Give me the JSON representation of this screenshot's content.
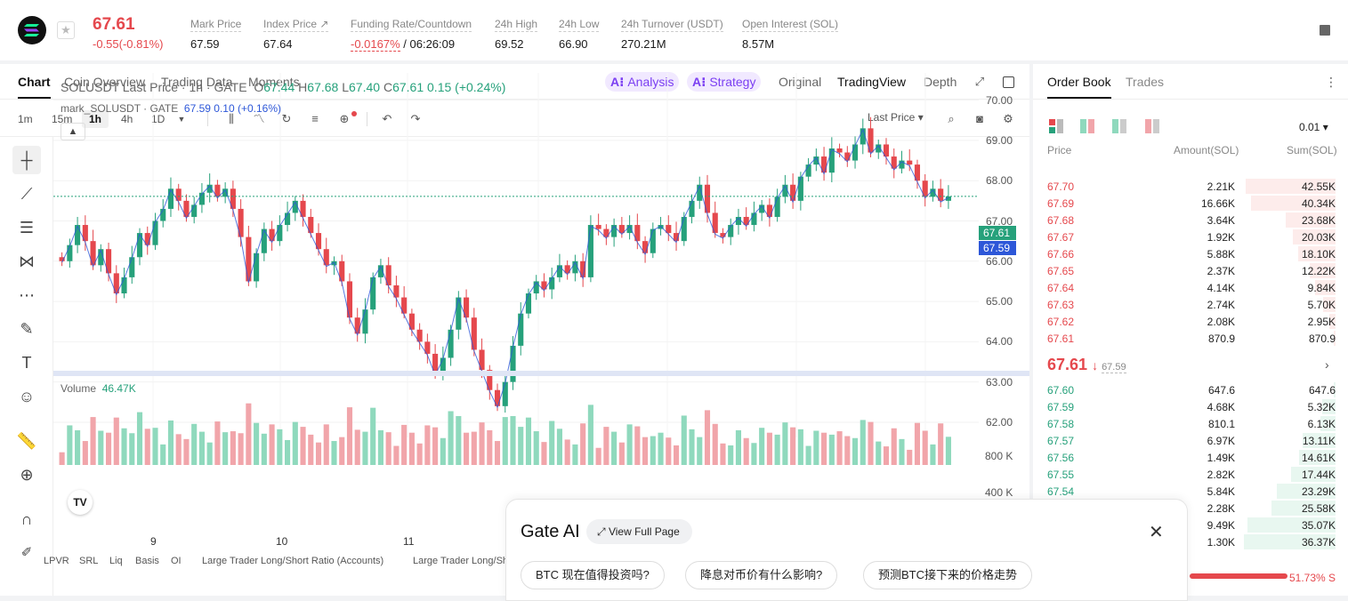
{
  "header": {
    "price": "67.61",
    "change": "-0.55(-0.81%)",
    "stats": [
      {
        "label": "Mark Price",
        "value": "67.59"
      },
      {
        "label": "Index Price ↗",
        "value": "67.64"
      },
      {
        "label": "Funding Rate/Countdown",
        "value": "-0.0167%",
        "value2": "/ 06:26:09"
      },
      {
        "label": "24h High",
        "value": "69.52"
      },
      {
        "label": "24h Low",
        "value": "66.90"
      },
      {
        "label": "24h Turnover (USDT)",
        "value": "270.21M"
      },
      {
        "label": "Open Interest (SOL)",
        "value": "8.57M"
      }
    ]
  },
  "chart_tabs": [
    "Chart",
    "Coin Overview",
    "Trading Data",
    "Moments"
  ],
  "ai_tabs": [
    "Analysis",
    "Strategy"
  ],
  "view_tabs": [
    "Original",
    "TradingView",
    "Depth"
  ],
  "intervals": [
    "1m",
    "15m",
    "1h",
    "4h",
    "1D"
  ],
  "price_type": "Last Price",
  "legend": {
    "symbol": "SOLUSDT Last Price · 1h · GATE",
    "o": "67.44",
    "h": "67.68",
    "l": "67.40",
    "c": "67.61",
    "chg": "0.15 (+0.24%)",
    "mark_label": "mark_SOLUSDT · GATE",
    "mark_val": "67.59",
    "mark_chg": "0.10 (+0.16%)"
  },
  "volume": {
    "label": "Volume",
    "value": "46.47K",
    "ticks": [
      "800 K",
      "400 K"
    ]
  },
  "chart_data": {
    "type": "candlestick",
    "ylim": [
      61.8,
      70.5
    ],
    "yticks": [
      "70.00",
      "69.00",
      "68.00",
      "67.00",
      "66.00",
      "65.00",
      "64.00",
      "63.00",
      "62.00"
    ],
    "xticks": [
      "9",
      "10",
      "11"
    ],
    "last_price": "67.61",
    "mark_price": "67.59",
    "closes": [
      66.0,
      66.4,
      66.9,
      66.5,
      65.9,
      66.3,
      65.7,
      65.2,
      65.6,
      66.1,
      66.7,
      66.4,
      67.0,
      67.3,
      67.8,
      67.5,
      67.1,
      67.4,
      67.7,
      67.9,
      67.6,
      67.8,
      67.3,
      66.6,
      65.5,
      66.2,
      66.8,
      66.5,
      66.9,
      67.2,
      67.5,
      67.1,
      66.7,
      66.3,
      65.9,
      66.0,
      65.5,
      64.6,
      64.2,
      64.8,
      65.6,
      65.9,
      65.4,
      65.1,
      64.7,
      64.3,
      64.0,
      63.7,
      63.2,
      63.6,
      64.3,
      65.1,
      64.6,
      63.8,
      63.3,
      62.8,
      62.4,
      63.0,
      63.9,
      64.7,
      65.2,
      65.5,
      65.3,
      65.6,
      65.9,
      65.7,
      66.0,
      65.6,
      66.9,
      66.8,
      66.6,
      66.9,
      66.7,
      66.9,
      66.5,
      66.2,
      66.8,
      66.9,
      66.7,
      66.5,
      67.1,
      67.5,
      67.9,
      67.2,
      66.7,
      66.6,
      66.9,
      67.1,
      66.9,
      67.2,
      67.4,
      67.1,
      67.6,
      67.9,
      67.5,
      68.1,
      68.4,
      68.6,
      68.2,
      68.8,
      68.7,
      68.5,
      68.9,
      69.3,
      68.7,
      68.9,
      68.6,
      68.3,
      68.5,
      68.4,
      68.0,
      67.6,
      67.8,
      67.5,
      67.61
    ]
  },
  "orderbook": {
    "tabs": [
      "Order Book",
      "Trades"
    ],
    "precision": "0.01",
    "headers": [
      "Price",
      "Amount(SOL)",
      "Sum(SOL)"
    ],
    "asks": [
      {
        "p": "67.70",
        "a": "2.21K",
        "s": "42.55K",
        "f": 0.95
      },
      {
        "p": "67.69",
        "a": "16.66K",
        "s": "40.34K",
        "f": 0.9
      },
      {
        "p": "67.68",
        "a": "3.64K",
        "s": "23.68K",
        "f": 0.53
      },
      {
        "p": "67.67",
        "a": "1.92K",
        "s": "20.03K",
        "f": 0.45
      },
      {
        "p": "67.66",
        "a": "5.88K",
        "s": "18.10K",
        "f": 0.4
      },
      {
        "p": "67.65",
        "a": "2.37K",
        "s": "12.22K",
        "f": 0.27
      },
      {
        "p": "67.64",
        "a": "4.14K",
        "s": "9.84K",
        "f": 0.22
      },
      {
        "p": "67.63",
        "a": "2.74K",
        "s": "5.70K",
        "f": 0.13
      },
      {
        "p": "67.62",
        "a": "2.08K",
        "s": "2.95K",
        "f": 0.07
      },
      {
        "p": "67.61",
        "a": "870.9",
        "s": "870.9",
        "f": 0.02
      }
    ],
    "mid_price": "67.61",
    "mid_mark": "67.59",
    "bids": [
      {
        "p": "67.60",
        "a": "647.6",
        "s": "647.6",
        "f": 0.02
      },
      {
        "p": "67.59",
        "a": "4.68K",
        "s": "5.32K",
        "f": 0.14
      },
      {
        "p": "67.58",
        "a": "810.1",
        "s": "6.13K",
        "f": 0.16
      },
      {
        "p": "67.57",
        "a": "6.97K",
        "s": "13.11K",
        "f": 0.35
      },
      {
        "p": "67.56",
        "a": "1.49K",
        "s": "14.61K",
        "f": 0.39
      },
      {
        "p": "67.55",
        "a": "2.82K",
        "s": "17.44K",
        "f": 0.47
      },
      {
        "p": "67.54",
        "a": "5.84K",
        "s": "23.29K",
        "f": 0.62
      },
      {
        "p": "",
        "a": "2.28K",
        "s": "25.58K",
        "f": 0.68
      },
      {
        "p": "",
        "a": "9.49K",
        "s": "35.07K",
        "f": 0.93
      },
      {
        "p": "",
        "a": "1.30K",
        "s": "36.37K",
        "f": 0.97
      }
    ],
    "ratio": "51.73% S"
  },
  "bottom_tools": [
    "LPVR",
    "SRL",
    "Liq",
    "Basis",
    "OI",
    "Large Trader Long/Short Ratio (Accounts)",
    "Large Trader Long/Sh"
  ],
  "gate_ai": {
    "title": "Gate AI",
    "view_full": "View Full Page",
    "suggestions": [
      "BTC 现在值得投资吗?",
      "降息对币价有什么影响?",
      "预测BTC接下来的价格走势"
    ]
  },
  "colors": {
    "up": "#26a17b",
    "down": "#e5484d",
    "accent": "#7b3ff2"
  }
}
